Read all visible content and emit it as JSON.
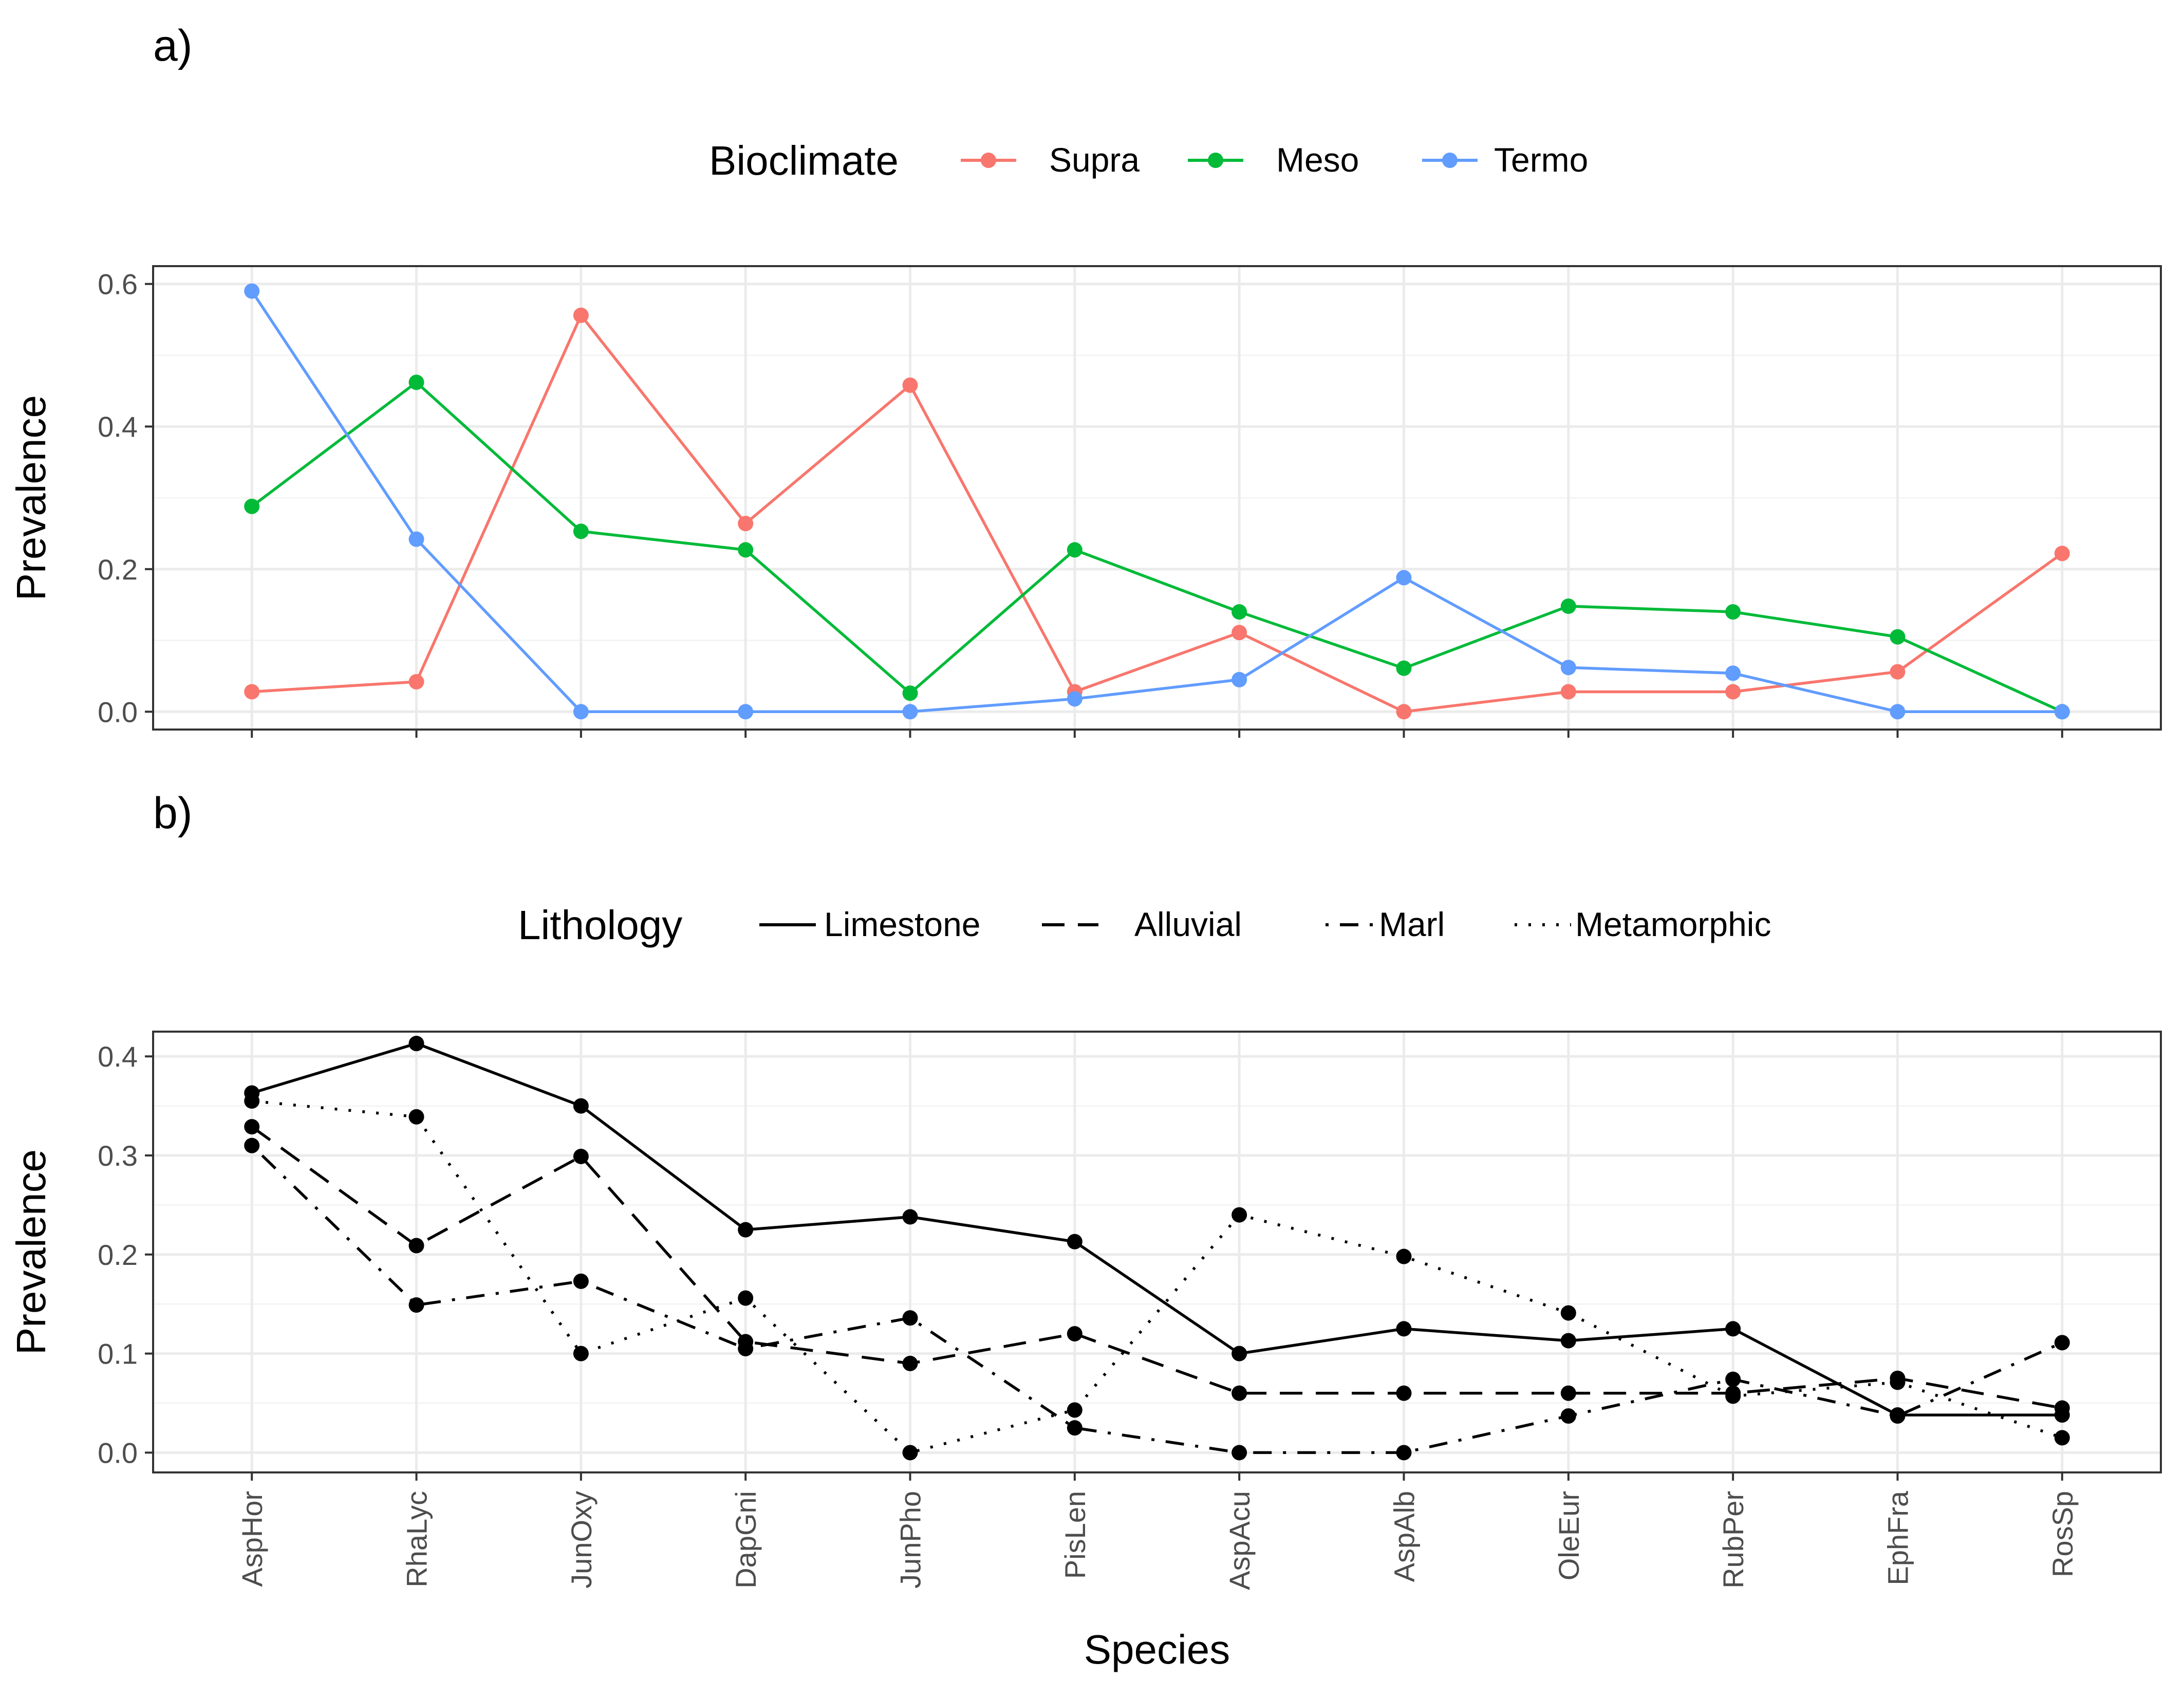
{
  "chart_data": [
    {
      "panel": "a)",
      "type": "line",
      "title": "",
      "xlabel": "",
      "ylabel": "Prevalence",
      "ylim": [
        -0.025,
        0.625
      ],
      "yticks": [
        "0.0",
        "0.2",
        "0.4",
        "0.6"
      ],
      "grid": true,
      "legend": {
        "title": "Bioclimate",
        "position": "top"
      },
      "categories": [
        "AspHor",
        "RhaLyc",
        "JunOxy",
        "DapGni",
        "JunPho",
        "PisLen",
        "AspAcu",
        "AspAlb",
        "OleEur",
        "RubPer",
        "EphFra",
        "RosSp"
      ],
      "series": [
        {
          "name": "Supra",
          "color": "#F8766D",
          "values": [
            0.028,
            0.042,
            0.556,
            0.264,
            0.458,
            0.028,
            0.111,
            0.0,
            0.028,
            0.028,
            0.056,
            0.222
          ]
        },
        {
          "name": "Meso",
          "color": "#00BA38",
          "values": [
            0.288,
            0.462,
            0.253,
            0.227,
            0.026,
            0.227,
            0.14,
            0.061,
            0.148,
            0.14,
            0.105,
            0.0
          ]
        },
        {
          "name": "Termo",
          "color": "#619CFF",
          "values": [
            0.59,
            0.242,
            0.0,
            0.0,
            0.0,
            0.018,
            0.045,
            0.188,
            0.062,
            0.054,
            0.0,
            0.0
          ]
        }
      ]
    },
    {
      "panel": "b)",
      "type": "line",
      "title": "",
      "xlabel": "Species",
      "ylabel": "Prevalence",
      "ylim": [
        -0.02,
        0.425
      ],
      "yticks": [
        "0.0",
        "0.1",
        "0.2",
        "0.3",
        "0.4"
      ],
      "grid": true,
      "legend": {
        "title": "Lithology",
        "position": "top"
      },
      "categories": [
        "AspHor",
        "RhaLyc",
        "JunOxy",
        "DapGni",
        "JunPho",
        "PisLen",
        "AspAcu",
        "AspAlb",
        "OleEur",
        "RubPer",
        "EphFra",
        "RosSp"
      ],
      "series": [
        {
          "name": "Limestone",
          "linetype": "solid",
          "color": "#000000",
          "values": [
            0.363,
            0.413,
            0.35,
            0.225,
            0.238,
            0.213,
            0.1,
            0.125,
            0.113,
            0.125,
            0.038,
            0.038
          ]
        },
        {
          "name": "Alluvial",
          "linetype": "dashed",
          "color": "#000000",
          "values": [
            0.329,
            0.209,
            0.299,
            0.112,
            0.09,
            0.12,
            0.06,
            0.06,
            0.06,
            0.06,
            0.075,
            0.045
          ]
        },
        {
          "name": "Marl",
          "linetype": "dotdash",
          "color": "#000000",
          "values": [
            0.31,
            0.149,
            0.173,
            0.105,
            0.136,
            0.025,
            0.0,
            0.0,
            0.037,
            0.074,
            0.037,
            0.111
          ]
        },
        {
          "name": "Metamorphic",
          "linetype": "dotted",
          "color": "#000000",
          "values": [
            0.355,
            0.339,
            0.1,
            0.156,
            0.0,
            0.043,
            0.24,
            0.198,
            0.141,
            0.057,
            0.071,
            0.015
          ]
        }
      ]
    }
  ]
}
